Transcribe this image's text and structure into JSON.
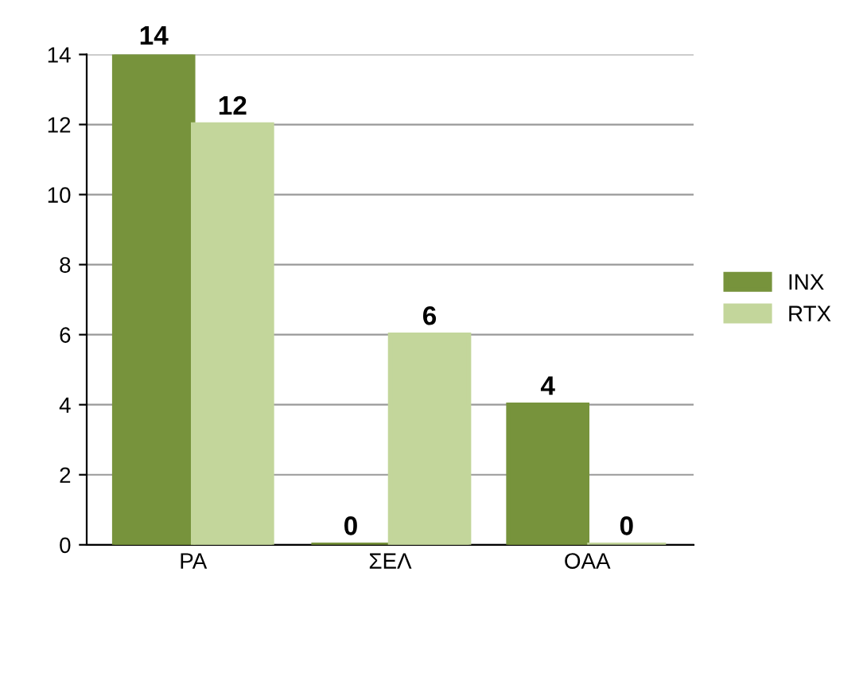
{
  "chart_data": {
    "type": "bar",
    "categories": [
      "PA",
      "ΣΕΛ",
      "OAA"
    ],
    "series": [
      {
        "name": "INX",
        "color": "#77933c",
        "values": [
          14,
          0,
          4
        ]
      },
      {
        "name": "RTX",
        "color": "#c3d69b",
        "values": [
          12,
          6,
          0
        ]
      }
    ],
    "ylim": [
      0,
      14
    ],
    "yticks": [
      0,
      2,
      4,
      6,
      8,
      10,
      12,
      14
    ],
    "grid": "y",
    "legend": "right",
    "data_labels": true
  }
}
